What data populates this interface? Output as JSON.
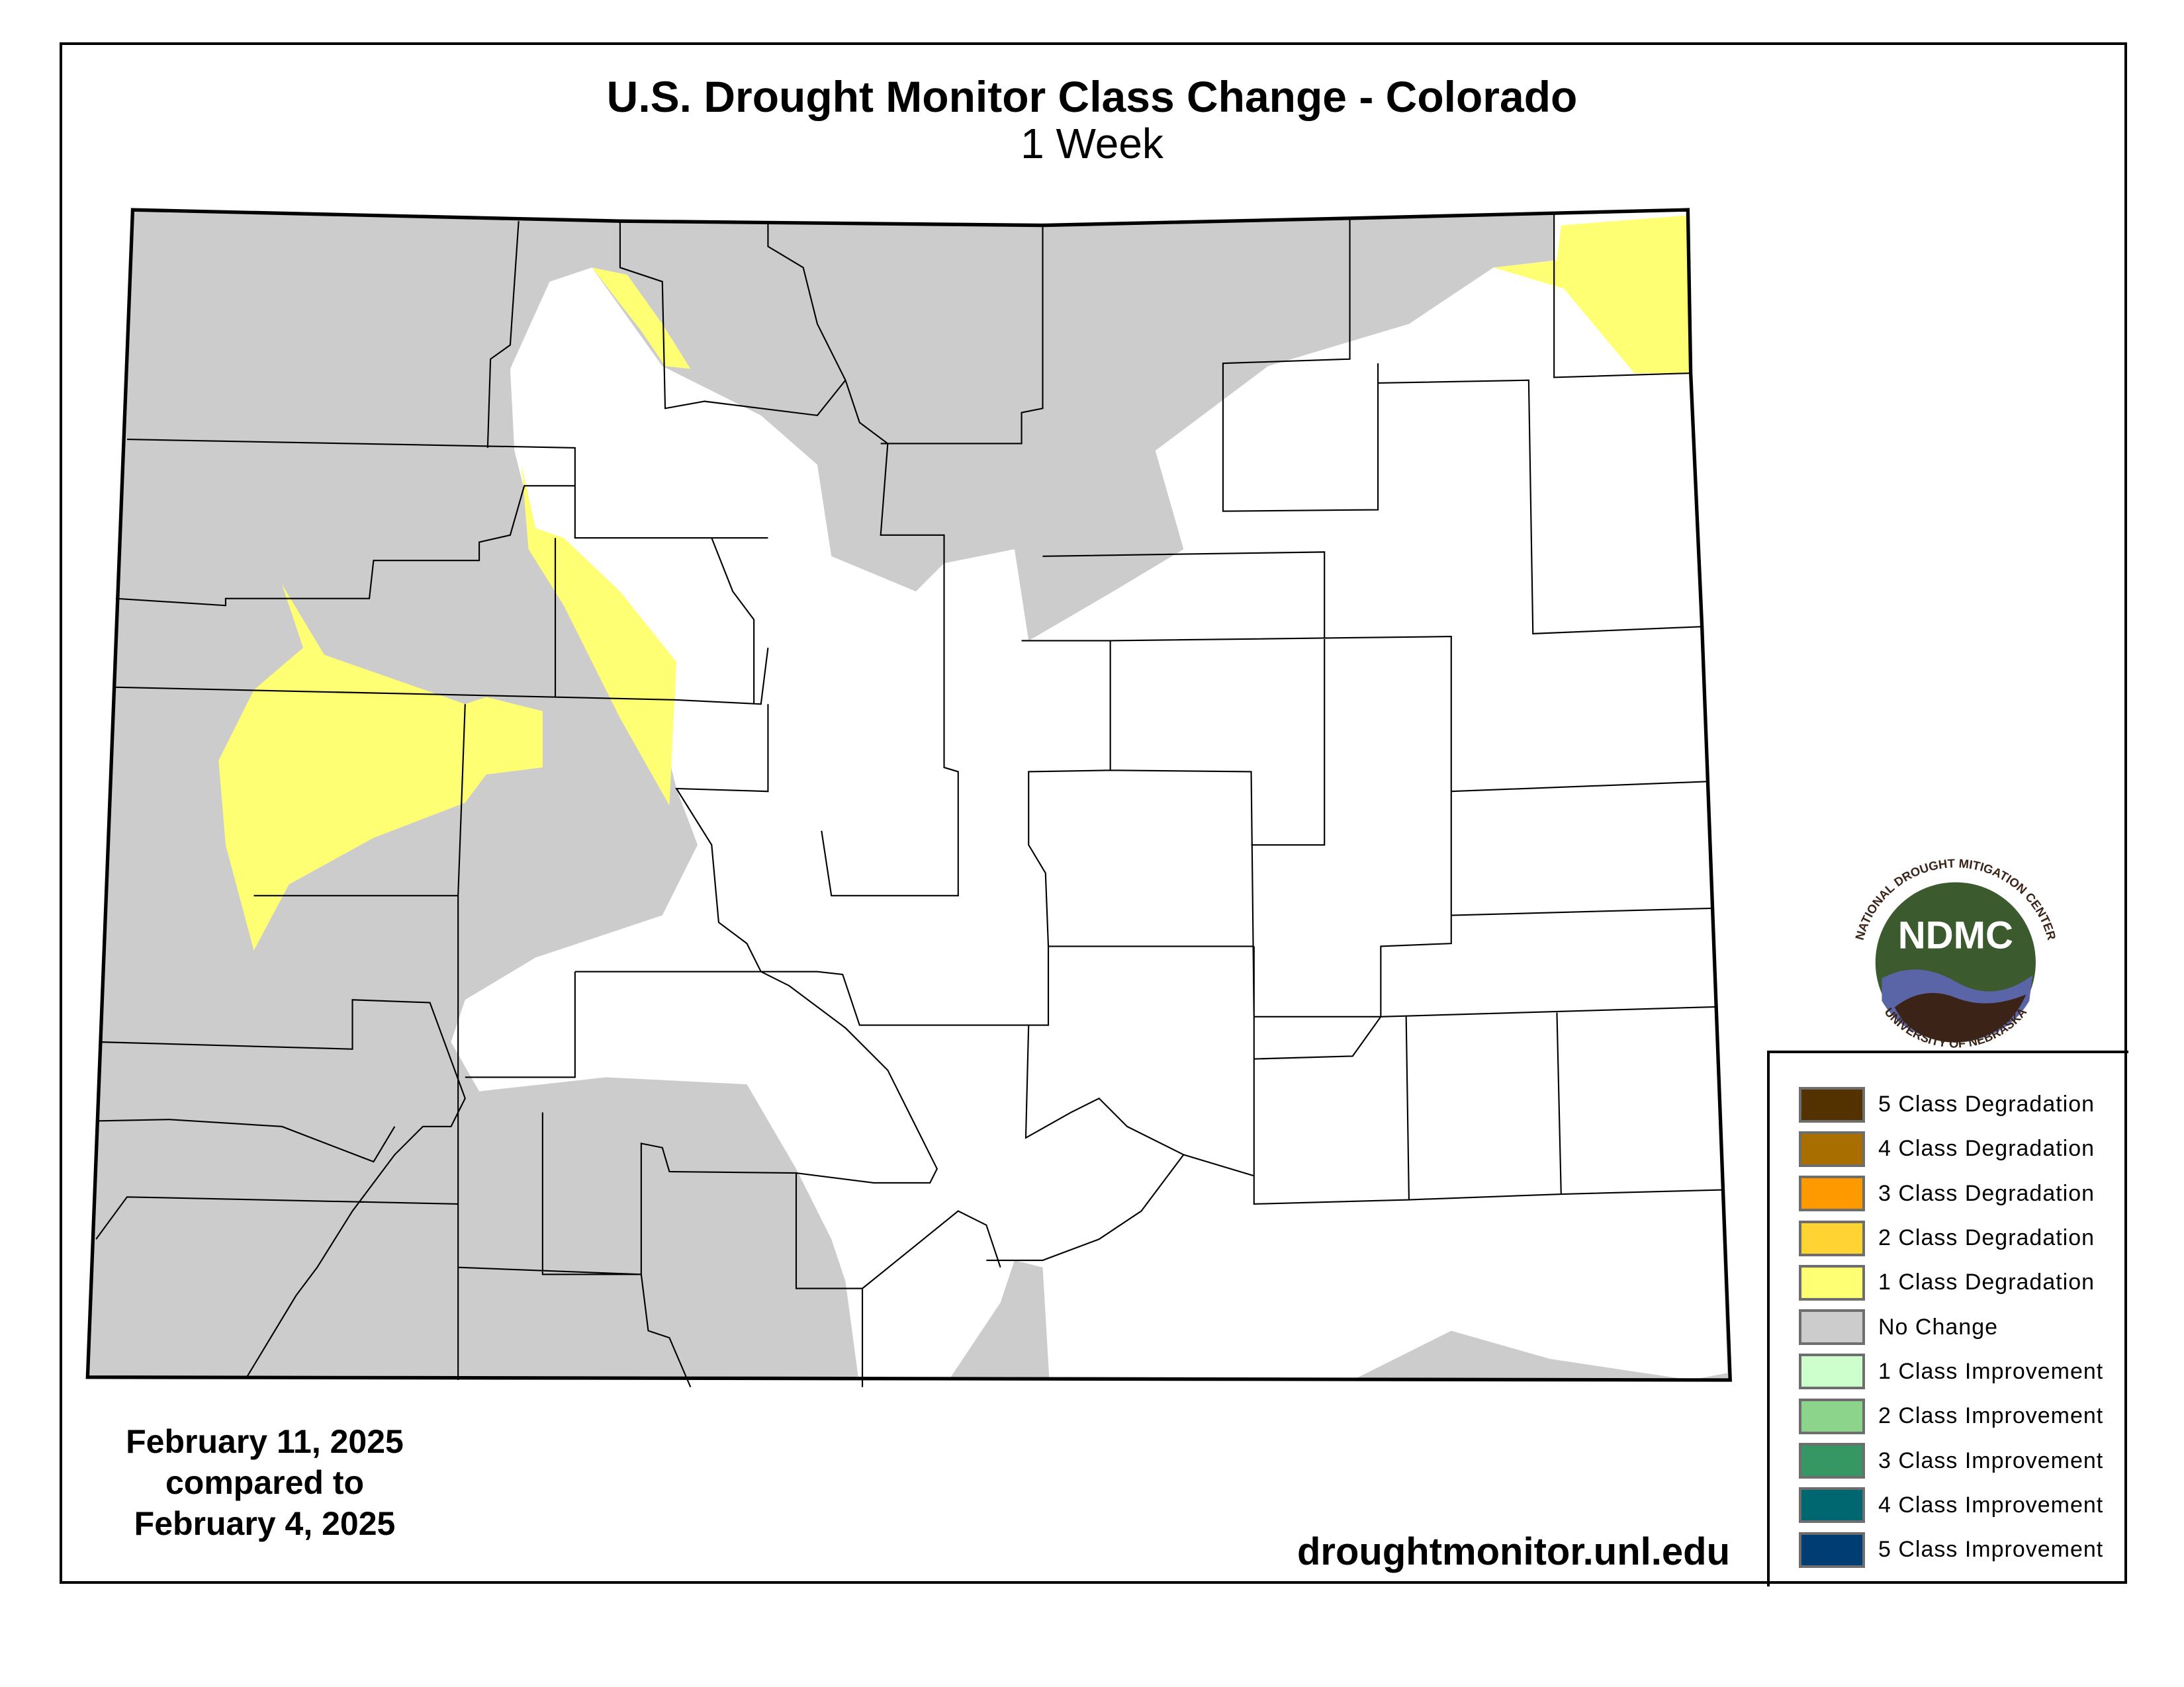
{
  "title": "U.S. Drought Monitor Class Change - Colorado",
  "subtitle": "1 Week",
  "dates": {
    "line1": "February 11, 2025",
    "line2": "compared to",
    "line3": "February 4, 2025"
  },
  "url": "droughtmonitor.unl.edu",
  "logo": {
    "abbr": "NDMC",
    "top_text": "NATIONAL DROUGHT MITIGATION CENTER",
    "bottom_text": "UNIVERSITY OF NEBRASKA"
  },
  "legend": [
    {
      "label": "5 Class Degradation",
      "color": "#533200"
    },
    {
      "label": "4 Class Degradation",
      "color": "#a86e00"
    },
    {
      "label": "3 Class Degradation",
      "color": "#ff9900"
    },
    {
      "label": "2 Class Degradation",
      "color": "#ffd332"
    },
    {
      "label": "1 Class Degradation",
      "color": "#ffff73"
    },
    {
      "label": "No Change",
      "color": "#cccccc"
    },
    {
      "label": "1 Class Improvement",
      "color": "#ccffcc"
    },
    {
      "label": "2 Class Improvement",
      "color": "#8cd48c"
    },
    {
      "label": "3 Class Improvement",
      "color": "#369664"
    },
    {
      "label": "4 Class Improvement",
      "color": "#006670"
    },
    {
      "label": "5 Class Improvement",
      "color": "#003d73"
    }
  ],
  "map_colors": {
    "no_change": "#cccccc",
    "one_class_degradation": "#ffff73",
    "unchanged_none": "#ffffff"
  }
}
